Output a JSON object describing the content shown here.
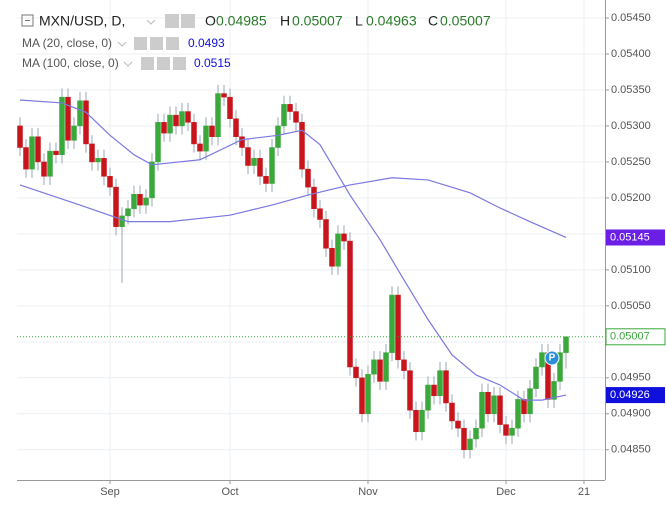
{
  "chart_data": {
    "type": "candlestick",
    "symbol": "MXN/USD, D,",
    "ohlc_labels": [
      "O",
      "H",
      "L",
      "C"
    ],
    "marker_text": "P",
    "up_color": "#3aa83a",
    "down_color": "#c8151b",
    "last_price_color": "#3aa83a",
    "grid": true,
    "ylim": [
      0.04808,
      0.05475
    ],
    "yticks": [
      {
        "value": 0.0545,
        "label": "0.05450"
      },
      {
        "value": 0.054,
        "label": "0.05400"
      },
      {
        "value": 0.0535,
        "label": "0.05350"
      },
      {
        "value": 0.053,
        "label": "0.05300"
      },
      {
        "value": 0.0525,
        "label": "0.05250"
      },
      {
        "value": 0.052,
        "label": "0.05200"
      },
      {
        "value": 0.0515,
        "label": "0.05150"
      },
      {
        "value": 0.051,
        "label": "0.05100"
      },
      {
        "value": 0.0505,
        "label": "0.05050"
      },
      {
        "value": 0.05,
        "label": "0.05000"
      },
      {
        "value": 0.0495,
        "label": "0.04950"
      },
      {
        "value": 0.049,
        "label": "0.04900"
      },
      {
        "value": 0.0485,
        "label": "0.04850"
      }
    ],
    "categories": [
      null,
      null,
      null,
      null,
      null,
      null,
      null,
      null,
      null,
      null,
      null,
      null,
      null,
      null,
      null,
      "Sep",
      null,
      null,
      null,
      null,
      null,
      null,
      null,
      null,
      null,
      null,
      null,
      null,
      null,
      null,
      null,
      null,
      null,
      null,
      null,
      "Oct",
      null,
      null,
      null,
      null,
      null,
      null,
      null,
      null,
      null,
      null,
      null,
      null,
      null,
      null,
      null,
      null,
      null,
      null,
      null,
      null,
      null,
      null,
      "Nov",
      null,
      null,
      null,
      null,
      null,
      null,
      null,
      null,
      null,
      null,
      null,
      null,
      null,
      null,
      null,
      null,
      null,
      null,
      null,
      null,
      null,
      null,
      "Dec",
      null,
      null,
      null,
      null,
      null,
      null,
      null,
      null,
      null,
      null,
      null,
      null,
      "21",
      null,
      null,
      null
    ],
    "candles": {
      "open": [
        0.053,
        0.0527,
        0.0524,
        0.05285,
        0.0525,
        0.0523,
        0.05265,
        0.0526,
        0.0534,
        0.0528,
        0.053,
        0.05335,
        0.05275,
        0.0525,
        0.05255,
        0.0523,
        0.05215,
        0.0516,
        0.05175,
        0.05185,
        0.05205,
        0.0519,
        0.052,
        0.0525,
        0.05305,
        0.0529,
        0.05315,
        0.053,
        0.0532,
        0.05305,
        0.05275,
        0.05265,
        0.053,
        0.05285,
        0.05345,
        0.0534,
        0.0531,
        0.05285,
        0.0527,
        0.05245,
        0.05255,
        0.0523,
        0.0522,
        0.0527,
        0.053,
        0.0533,
        0.0532,
        0.05305,
        0.0524,
        0.05215,
        0.05185,
        0.0517,
        0.0513,
        0.05105,
        0.0515,
        0.0514,
        0.04965,
        0.0495,
        0.049,
        0.04955,
        0.04975,
        0.04945,
        0.04985,
        0.05065,
        0.04975,
        0.0496,
        0.04905,
        0.04875,
        0.04905,
        0.0494,
        0.04925,
        0.0496,
        0.04915,
        0.0489,
        0.0488,
        0.0485,
        0.04865,
        0.0488,
        0.0493,
        0.049,
        0.04925,
        0.04885,
        0.0487,
        0.0488,
        0.0492,
        0.049,
        0.04935,
        0.04965,
        0.04985,
        0.0492,
        0.04945,
        0.04985,
        null,
        null,
        null,
        null,
        null,
        null
      ],
      "high": [
        0.05312,
        0.05282,
        0.05297,
        0.05297,
        0.05262,
        0.05277,
        0.05277,
        0.05352,
        0.05352,
        0.05312,
        0.05347,
        0.05347,
        0.05287,
        0.05267,
        0.05267,
        0.05242,
        0.05227,
        0.05187,
        0.05197,
        0.05217,
        0.05217,
        0.05212,
        0.05262,
        0.05317,
        0.05317,
        0.05327,
        0.05327,
        0.05332,
        0.05332,
        0.05317,
        0.05287,
        0.05312,
        0.05312,
        0.05357,
        0.05357,
        0.05352,
        0.05322,
        0.05297,
        0.05282,
        0.05267,
        0.05267,
        0.05242,
        0.05282,
        0.05312,
        0.05342,
        0.05342,
        0.05332,
        0.05317,
        0.05252,
        0.05227,
        0.05197,
        0.05182,
        0.05142,
        0.05162,
        0.05162,
        0.05152,
        0.04977,
        0.04962,
        0.04967,
        0.04987,
        0.04987,
        0.04997,
        0.05077,
        0.05077,
        0.04987,
        0.04972,
        0.04917,
        0.04917,
        0.04952,
        0.04952,
        0.04972,
        0.04972,
        0.04927,
        0.04902,
        0.04892,
        0.04877,
        0.04892,
        0.04942,
        0.04942,
        0.04937,
        0.04937,
        0.04897,
        0.04892,
        0.04932,
        0.04932,
        0.04947,
        0.04977,
        0.04997,
        0.04997,
        0.04957,
        0.04997,
        0.05007,
        null,
        null,
        null,
        null,
        null,
        null
      ],
      "low": [
        0.05258,
        0.05228,
        0.05228,
        0.05238,
        0.05218,
        0.05218,
        0.05248,
        0.05248,
        0.05268,
        0.05268,
        0.05288,
        0.05263,
        0.05238,
        0.05238,
        0.05218,
        0.05203,
        0.05148,
        0.05082,
        0.05163,
        0.05173,
        0.05178,
        0.05178,
        0.05188,
        0.05238,
        0.05278,
        0.05278,
        0.05288,
        0.05288,
        0.05293,
        0.05263,
        0.05253,
        0.05253,
        0.05273,
        0.05273,
        0.05328,
        0.05298,
        0.05273,
        0.05258,
        0.05233,
        0.05233,
        0.05218,
        0.05208,
        0.05208,
        0.05258,
        0.05288,
        0.05308,
        0.05293,
        0.05228,
        0.05203,
        0.05173,
        0.05158,
        0.05118,
        0.05093,
        0.05093,
        0.05128,
        0.04953,
        0.04938,
        0.04888,
        0.04888,
        0.04943,
        0.04933,
        0.04933,
        0.04973,
        0.04963,
        0.04948,
        0.04893,
        0.04863,
        0.04863,
        0.04893,
        0.04913,
        0.04913,
        0.04903,
        0.04878,
        0.04868,
        0.04838,
        0.04838,
        0.04853,
        0.04868,
        0.04888,
        0.04888,
        0.04873,
        0.04858,
        0.04858,
        0.04868,
        0.04888,
        0.04888,
        0.04923,
        0.04953,
        0.04908,
        0.04908,
        0.04933,
        0.04963,
        null,
        null,
        null,
        null,
        null,
        null
      ],
      "close": [
        0.0527,
        0.0524,
        0.05285,
        0.0525,
        0.0523,
        0.05265,
        0.0526,
        0.0534,
        0.0528,
        0.053,
        0.05335,
        0.05275,
        0.0525,
        0.05255,
        0.0523,
        0.05215,
        0.0516,
        0.05175,
        0.05185,
        0.05205,
        0.0519,
        0.052,
        0.0525,
        0.05305,
        0.0529,
        0.05315,
        0.053,
        0.0532,
        0.05305,
        0.05275,
        0.05265,
        0.053,
        0.05285,
        0.05345,
        0.0534,
        0.0531,
        0.05285,
        0.0527,
        0.05245,
        0.05255,
        0.0523,
        0.0522,
        0.0527,
        0.053,
        0.0533,
        0.0532,
        0.05305,
        0.0524,
        0.05215,
        0.05185,
        0.0517,
        0.0513,
        0.05105,
        0.0515,
        0.0514,
        0.04965,
        0.0495,
        0.049,
        0.04955,
        0.04975,
        0.04945,
        0.04985,
        0.05065,
        0.04975,
        0.0496,
        0.04905,
        0.04875,
        0.04905,
        0.0494,
        0.04925,
        0.0496,
        0.04915,
        0.0489,
        0.0488,
        0.0485,
        0.04865,
        0.0488,
        0.0493,
        0.049,
        0.04925,
        0.04885,
        0.0487,
        0.0488,
        0.0492,
        0.049,
        0.04935,
        0.04965,
        0.04985,
        0.0492,
        0.04945,
        0.04985,
        0.05007,
        null,
        null,
        null,
        null,
        null,
        null
      ]
    },
    "series": [
      {
        "name": "MA (20, close, 0)",
        "legend_value": 0.0493,
        "color": "#7b78e0",
        "box_color": "#1010dd",
        "x": [
          0,
          7,
          11,
          15,
          19,
          22,
          30,
          37,
          43,
          47,
          50,
          55,
          60,
          64,
          68,
          72,
          76,
          80,
          84,
          87,
          91
        ],
        "values": [
          0.05336,
          0.05332,
          0.05319,
          0.05287,
          0.0526,
          0.05246,
          0.05253,
          0.05281,
          0.05287,
          0.05294,
          0.05274,
          0.05204,
          0.05142,
          0.05086,
          0.05031,
          0.04982,
          0.04954,
          0.0494,
          0.04919,
          0.04919,
          0.04926
        ]
      },
      {
        "name": "MA (100, close, 0)",
        "legend_value": 0.0515,
        "color": "#7b78e0",
        "box_color": "#6a1ee6",
        "x": [
          0,
          10,
          18,
          25,
          35,
          42,
          48,
          55,
          62,
          68,
          75,
          80,
          85,
          91
        ],
        "values": [
          0.05218,
          0.0519,
          0.05167,
          0.05167,
          0.05176,
          0.0519,
          0.05204,
          0.05218,
          0.05228,
          0.05225,
          0.05207,
          0.05186,
          0.05167,
          0.05145
        ]
      }
    ]
  }
}
